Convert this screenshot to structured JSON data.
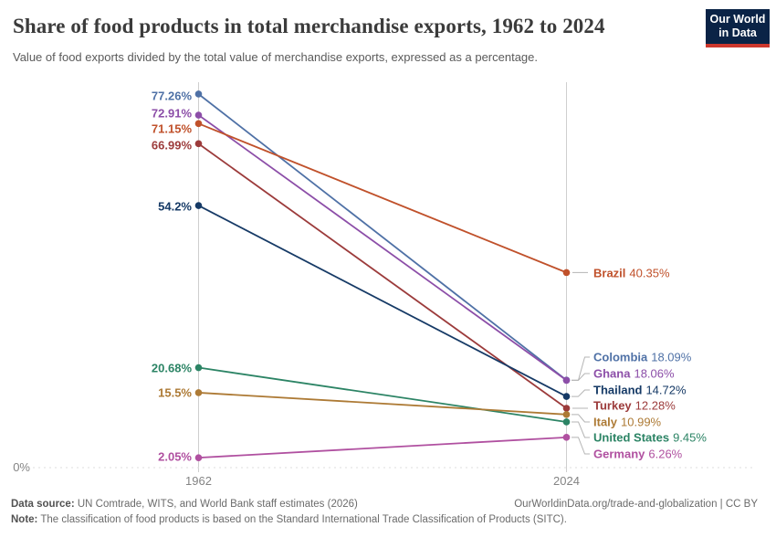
{
  "header": {
    "title": "Share of food products in total merchandise exports, 1962 to 2024",
    "subtitle": "Value of food exports divided by the total value of merchandise exports, expressed as a percentage.",
    "logo": {
      "line1": "Our World",
      "line2": "in Data",
      "bg_color": "#0a2346",
      "bar_color": "#cd372d"
    }
  },
  "chart_data": {
    "type": "line",
    "subtype": "slope-chart",
    "x": [
      1962,
      2024
    ],
    "x_tick_labels": [
      "1962",
      "2024"
    ],
    "y_axis": {
      "baseline_label": "0%",
      "min": 0,
      "max": 80,
      "unit": "%"
    },
    "grid": "zero-line-only",
    "legend_position": "labels-inline",
    "series": [
      {
        "name": "Colombia",
        "color": "#4f71a6",
        "values": [
          77.26,
          18.09
        ],
        "start_label": "77.26%",
        "end_label": "18.09%"
      },
      {
        "name": "Ghana",
        "color": "#8c4ea8",
        "values": [
          72.91,
          18.06
        ],
        "start_label": "72.91%",
        "end_label": "18.06%"
      },
      {
        "name": "Brazil",
        "color": "#c0512b",
        "values": [
          71.15,
          40.35
        ],
        "start_label": "71.15%",
        "end_label": "40.35%"
      },
      {
        "name": "Turkey",
        "color": "#9c3b3b",
        "values": [
          66.99,
          12.28
        ],
        "start_label": "66.99%",
        "end_label": "12.28%"
      },
      {
        "name": "Thailand",
        "color": "#163a66",
        "values": [
          54.2,
          14.72
        ],
        "start_label": "54.2%",
        "end_label": "14.72%"
      },
      {
        "name": "United States",
        "color": "#2c8465",
        "values": [
          20.68,
          9.45
        ],
        "start_label": "20.68%",
        "end_label": "9.45%"
      },
      {
        "name": "Italy",
        "color": "#ad7a35",
        "values": [
          15.5,
          10.99
        ],
        "start_label": "15.5%",
        "end_label": "10.99%"
      },
      {
        "name": "Germany",
        "color": "#b050a0",
        "values": [
          2.05,
          6.26
        ],
        "start_label": "2.05%",
        "end_label": "6.26%"
      }
    ]
  },
  "footer": {
    "source_label": "Data source:",
    "source_text": " UN Comtrade, WITS, and World Bank staff estimates (2026)",
    "attribution": "OurWorldinData.org/trade-and-globalization | CC BY",
    "note_label": "Note:",
    "note_text": " The classification of food products is based on the Standard International Trade Classification of Products (SITC)."
  }
}
